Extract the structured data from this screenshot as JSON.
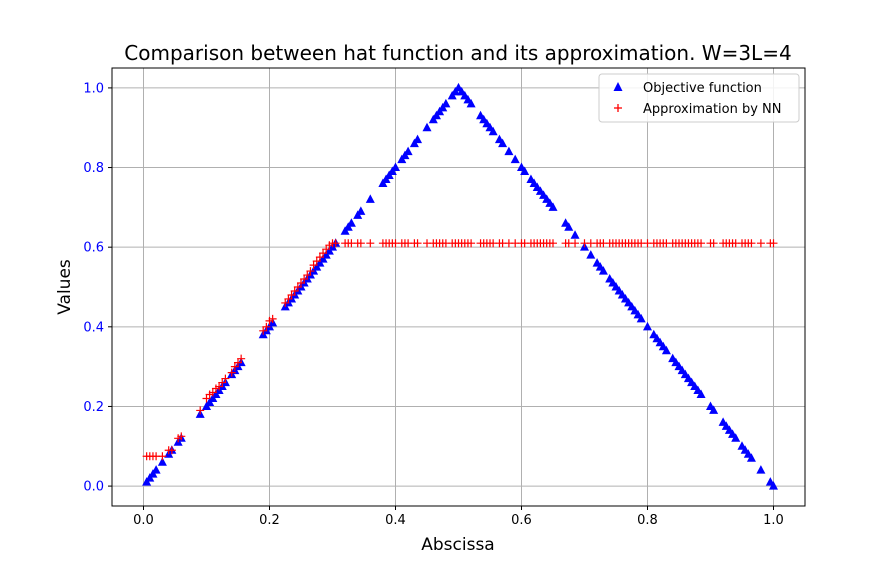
{
  "chart_data": {
    "type": "scatter",
    "title": "Comparison between hat function and its approximation. W=3L=4",
    "xlabel": "Abscissa",
    "ylabel": "Values",
    "xlim": [
      -0.05,
      1.05
    ],
    "ylim": [
      -0.05,
      1.05
    ],
    "xticks": [
      0.0,
      0.2,
      0.4,
      0.6,
      0.8,
      1.0
    ],
    "xtick_labels": [
      "0.0",
      "0.2",
      "0.4",
      "0.6",
      "0.8",
      "1.0"
    ],
    "yticks": [
      0.0,
      0.2,
      0.4,
      0.6,
      0.8,
      1.0
    ],
    "ytick_labels": [
      "0.0",
      "0.2",
      "0.4",
      "0.6",
      "0.8",
      "1.0"
    ],
    "grid": true,
    "legend_position": "top-right",
    "x": [
      0.005,
      0.01,
      0.015,
      0.02,
      0.03,
      0.04,
      0.045,
      0.055,
      0.06,
      0.09,
      0.1,
      0.105,
      0.11,
      0.115,
      0.12,
      0.125,
      0.13,
      0.14,
      0.145,
      0.15,
      0.155,
      0.19,
      0.195,
      0.2,
      0.205,
      0.225,
      0.23,
      0.235,
      0.24,
      0.245,
      0.25,
      0.255,
      0.26,
      0.265,
      0.27,
      0.275,
      0.28,
      0.285,
      0.29,
      0.295,
      0.3,
      0.305,
      0.32,
      0.325,
      0.33,
      0.34,
      0.345,
      0.36,
      0.38,
      0.385,
      0.39,
      0.395,
      0.4,
      0.41,
      0.415,
      0.42,
      0.43,
      0.435,
      0.45,
      0.46,
      0.465,
      0.47,
      0.475,
      0.48,
      0.49,
      0.495,
      0.5,
      0.505,
      0.51,
      0.515,
      0.52,
      0.535,
      0.54,
      0.545,
      0.55,
      0.555,
      0.565,
      0.57,
      0.58,
      0.59,
      0.6,
      0.605,
      0.615,
      0.62,
      0.625,
      0.63,
      0.635,
      0.64,
      0.645,
      0.65,
      0.67,
      0.675,
      0.685,
      0.7,
      0.71,
      0.72,
      0.725,
      0.73,
      0.74,
      0.745,
      0.75,
      0.755,
      0.76,
      0.765,
      0.77,
      0.775,
      0.78,
      0.785,
      0.79,
      0.8,
      0.81,
      0.815,
      0.82,
      0.825,
      0.83,
      0.84,
      0.845,
      0.85,
      0.855,
      0.86,
      0.865,
      0.87,
      0.875,
      0.88,
      0.885,
      0.9,
      0.905,
      0.92,
      0.925,
      0.93,
      0.935,
      0.94,
      0.95,
      0.955,
      0.96,
      0.965,
      0.98,
      0.995,
      1.0
    ],
    "series": [
      {
        "name": "Objective function",
        "marker": "triangle",
        "color": "#0000ff",
        "values": [
          0.01,
          0.02,
          0.03,
          0.04,
          0.06,
          0.08,
          0.09,
          0.11,
          0.12,
          0.18,
          0.2,
          0.21,
          0.22,
          0.23,
          0.24,
          0.25,
          0.26,
          0.28,
          0.29,
          0.3,
          0.31,
          0.38,
          0.39,
          0.4,
          0.41,
          0.45,
          0.46,
          0.47,
          0.48,
          0.49,
          0.5,
          0.51,
          0.52,
          0.53,
          0.54,
          0.55,
          0.56,
          0.57,
          0.58,
          0.59,
          0.6,
          0.61,
          0.64,
          0.65,
          0.66,
          0.68,
          0.69,
          0.72,
          0.76,
          0.77,
          0.78,
          0.79,
          0.8,
          0.82,
          0.83,
          0.84,
          0.86,
          0.87,
          0.9,
          0.92,
          0.93,
          0.94,
          0.95,
          0.96,
          0.98,
          0.99,
          1.0,
          0.99,
          0.98,
          0.97,
          0.96,
          0.93,
          0.92,
          0.91,
          0.9,
          0.89,
          0.87,
          0.86,
          0.84,
          0.82,
          0.8,
          0.79,
          0.77,
          0.76,
          0.75,
          0.74,
          0.73,
          0.72,
          0.71,
          0.7,
          0.66,
          0.65,
          0.63,
          0.6,
          0.58,
          0.56,
          0.55,
          0.54,
          0.52,
          0.51,
          0.5,
          0.49,
          0.48,
          0.47,
          0.46,
          0.45,
          0.44,
          0.43,
          0.42,
          0.4,
          0.38,
          0.37,
          0.36,
          0.35,
          0.34,
          0.32,
          0.31,
          0.3,
          0.29,
          0.28,
          0.27,
          0.26,
          0.25,
          0.24,
          0.23,
          0.2,
          0.19,
          0.16,
          0.15,
          0.14,
          0.13,
          0.12,
          0.1,
          0.09,
          0.08,
          0.07,
          0.04,
          0.01,
          0.0
        ]
      },
      {
        "name": "Approximation by NN",
        "marker": "plus",
        "color": "#ff0000",
        "values": [
          0.075,
          0.075,
          0.075,
          0.075,
          0.075,
          0.09,
          0.09,
          0.12,
          0.125,
          0.19,
          0.22,
          0.23,
          0.235,
          0.245,
          0.25,
          0.26,
          0.27,
          0.285,
          0.3,
          0.31,
          0.32,
          0.39,
          0.4,
          0.415,
          0.42,
          0.46,
          0.47,
          0.48,
          0.49,
          0.5,
          0.51,
          0.52,
          0.53,
          0.54,
          0.555,
          0.565,
          0.575,
          0.585,
          0.595,
          0.605,
          0.61,
          0.61,
          0.61,
          0.61,
          0.61,
          0.61,
          0.61,
          0.61,
          0.61,
          0.61,
          0.61,
          0.61,
          0.61,
          0.61,
          0.61,
          0.61,
          0.61,
          0.61,
          0.61,
          0.61,
          0.61,
          0.61,
          0.61,
          0.61,
          0.61,
          0.61,
          0.61,
          0.61,
          0.61,
          0.61,
          0.61,
          0.61,
          0.61,
          0.61,
          0.61,
          0.61,
          0.61,
          0.61,
          0.61,
          0.61,
          0.61,
          0.61,
          0.61,
          0.61,
          0.61,
          0.61,
          0.61,
          0.61,
          0.61,
          0.61,
          0.61,
          0.61,
          0.61,
          0.61,
          0.61,
          0.61,
          0.61,
          0.61,
          0.61,
          0.61,
          0.61,
          0.61,
          0.61,
          0.61,
          0.61,
          0.61,
          0.61,
          0.61,
          0.61,
          0.61,
          0.61,
          0.61,
          0.61,
          0.61,
          0.61,
          0.61,
          0.61,
          0.61,
          0.61,
          0.61,
          0.61,
          0.61,
          0.61,
          0.61,
          0.61,
          0.61,
          0.61,
          0.61,
          0.61,
          0.61,
          0.61,
          0.61,
          0.61,
          0.61,
          0.61,
          0.61,
          0.61,
          0.61,
          0.61
        ]
      }
    ]
  }
}
